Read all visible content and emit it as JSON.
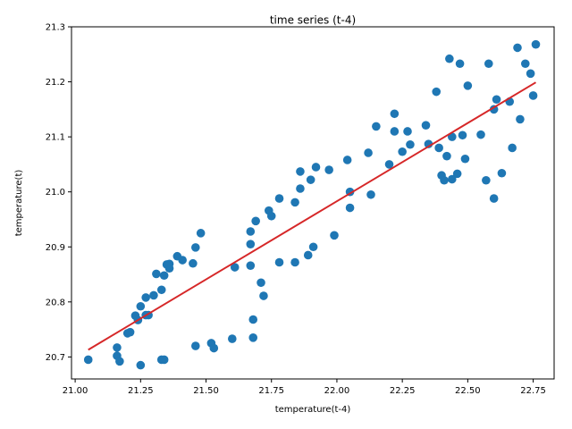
{
  "chart_data": {
    "type": "scatter",
    "title": "time series (t-4)",
    "xlabel": "temperature(t-4)",
    "ylabel": "temperature(t)",
    "xlim": [
      20.986,
      22.83
    ],
    "ylim": [
      20.66,
      21.3
    ],
    "xticks": [
      "21.00",
      "21.25",
      "21.50",
      "21.75",
      "22.00",
      "22.25",
      "22.50",
      "22.75"
    ],
    "xtick_values": [
      21.0,
      21.25,
      21.5,
      21.75,
      22.0,
      22.25,
      22.5,
      22.75
    ],
    "yticks": [
      "20.7",
      "20.8",
      "20.9",
      "21.0",
      "21.1",
      "21.2",
      "21.3"
    ],
    "ytick_values": [
      20.7,
      20.8,
      20.9,
      21.0,
      21.1,
      21.2,
      21.3
    ],
    "grid": false,
    "legend": "none",
    "colors": {
      "points": "#1f77b4",
      "fit_line": "#d62728"
    },
    "series": [
      {
        "kind": "points",
        "x": [
          21.05,
          21.16,
          21.16,
          21.17,
          21.2,
          21.21,
          21.23,
          21.24,
          21.25,
          21.27,
          21.28,
          21.3,
          21.31,
          21.33,
          21.34,
          21.34,
          21.35,
          21.36,
          21.36,
          21.39,
          21.41,
          21.45,
          21.46,
          21.48,
          21.33,
          21.46,
          21.52,
          21.53,
          21.6,
          21.61,
          21.67,
          21.67,
          21.67,
          21.68,
          21.68,
          21.69,
          21.71,
          21.72,
          21.74,
          21.75,
          21.78,
          21.78,
          21.84,
          21.84,
          21.86,
          21.86,
          21.89,
          21.9,
          21.91,
          21.92,
          21.97,
          21.99,
          22.04,
          22.05,
          22.05,
          22.12,
          22.13,
          22.15,
          22.2,
          22.22,
          22.22,
          22.25,
          22.27,
          22.28,
          22.34,
          22.35,
          22.38,
          22.39,
          22.4,
          22.41,
          22.42,
          22.43,
          22.44,
          22.44,
          22.46,
          22.47,
          22.48,
          22.49,
          22.5,
          22.55,
          22.57,
          22.58,
          22.6,
          22.6,
          22.61,
          22.63,
          22.66,
          22.67,
          22.69,
          22.7,
          22.72,
          22.74,
          22.75,
          22.76,
          21.25,
          21.27
        ],
        "y": [
          20.695,
          20.717,
          20.702,
          20.692,
          20.743,
          20.745,
          20.775,
          20.767,
          20.792,
          20.808,
          20.776,
          20.812,
          20.851,
          20.822,
          20.848,
          20.695,
          20.868,
          20.861,
          20.869,
          20.883,
          20.876,
          20.87,
          20.899,
          20.925,
          20.695,
          20.72,
          20.725,
          20.716,
          20.733,
          20.863,
          20.866,
          20.905,
          20.928,
          20.735,
          20.768,
          20.947,
          20.835,
          20.811,
          20.966,
          20.956,
          20.988,
          20.872,
          20.981,
          20.872,
          21.037,
          21.006,
          20.885,
          21.022,
          20.9,
          21.045,
          21.04,
          20.921,
          21.058,
          20.971,
          21.0,
          21.071,
          20.995,
          21.119,
          21.05,
          21.11,
          21.142,
          21.073,
          21.11,
          21.086,
          21.121,
          21.087,
          21.182,
          21.08,
          21.03,
          21.021,
          21.065,
          21.242,
          21.023,
          21.1,
          21.033,
          21.233,
          21.103,
          21.06,
          21.193,
          21.104,
          21.021,
          21.233,
          20.988,
          21.15,
          21.168,
          21.034,
          21.164,
          21.08,
          21.262,
          21.132,
          21.233,
          21.215,
          21.175,
          21.268,
          20.685,
          20.776
        ]
      },
      {
        "kind": "fit_line",
        "x": [
          21.05,
          22.76
        ],
        "y": [
          20.713,
          21.199
        ]
      }
    ]
  }
}
